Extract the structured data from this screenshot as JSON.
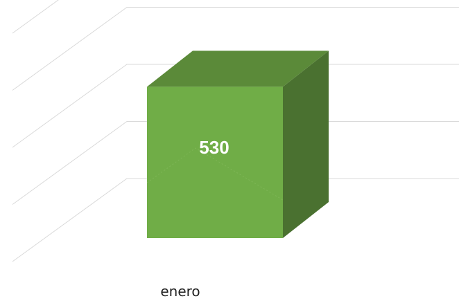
{
  "chart_data": {
    "type": "bar",
    "categories": [
      "enero"
    ],
    "series": [
      {
        "values": [
          530
        ]
      }
    ],
    "data_labels": [
      "530"
    ],
    "ylim": [
      0,
      800
    ],
    "grid": true,
    "style": "3d-column",
    "colors": {
      "front": "#70ad47",
      "top": "#5b8a39",
      "side": "#4a7130",
      "grid": "#d9d9d9"
    }
  }
}
